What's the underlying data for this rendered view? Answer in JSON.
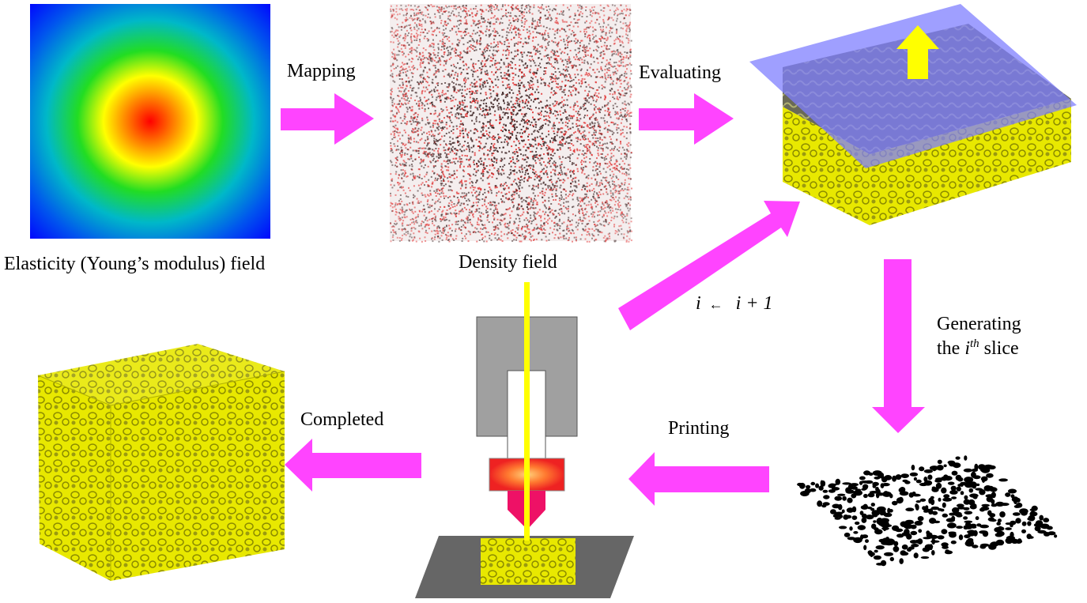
{
  "labels": {
    "elasticity": "Elasticity (Young’s modulus) field",
    "density": "Density field",
    "mapping": "Mapping",
    "evaluating": "Evaluating",
    "iteration_var": "i",
    "iteration_arrow": "←",
    "iteration_expr": "i + 1",
    "generating_line1": "Generating",
    "generating_the": "the",
    "generating_i": "i",
    "generating_th": "th",
    "generating_slice": "slice",
    "printing": "Printing",
    "completed": "Completed"
  },
  "colors": {
    "arrow": "#ff44ff",
    "lattice": "#e8e800",
    "plane": "#7f7fff",
    "laser": "#ffff00"
  }
}
